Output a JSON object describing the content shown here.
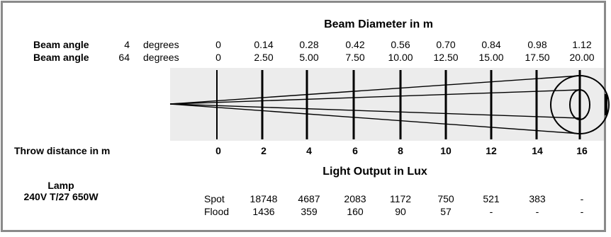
{
  "header_title": "Beam Diameter in m",
  "beam_rows": [
    {
      "label": "Beam angle",
      "angle": "4",
      "unit": "degrees",
      "values": [
        "0",
        "0.14",
        "0.28",
        "0.42",
        "0.56",
        "0.70",
        "0.84",
        "0.98",
        "1.12"
      ]
    },
    {
      "label": "Beam angle",
      "angle": "64",
      "unit": "degrees",
      "values": [
        "0",
        "2.50",
        "5.00",
        "7.50",
        "10.00",
        "12.50",
        "15.00",
        "17.50",
        "20.00"
      ]
    }
  ],
  "throw_label": "Throw distance in m",
  "throw_values": [
    "0",
    "2",
    "4",
    "6",
    "8",
    "10",
    "12",
    "14",
    "16"
  ],
  "lux_title": "Light Output in Lux",
  "lamp_label": "Lamp",
  "lamp_type": "240V T/27 650W",
  "lux_rows": [
    {
      "label": "Spot",
      "values": [
        "18748",
        "4687",
        "2083",
        "1172",
        "750",
        "521",
        "383",
        "-"
      ]
    },
    {
      "label": "Flood",
      "values": [
        "1436",
        "359",
        "160",
        "90",
        "57",
        "-",
        "-",
        "-"
      ]
    }
  ],
  "colors": {
    "frame": "#8a8a8a",
    "lines": "#000000",
    "diagram_bg": "#ececec"
  }
}
